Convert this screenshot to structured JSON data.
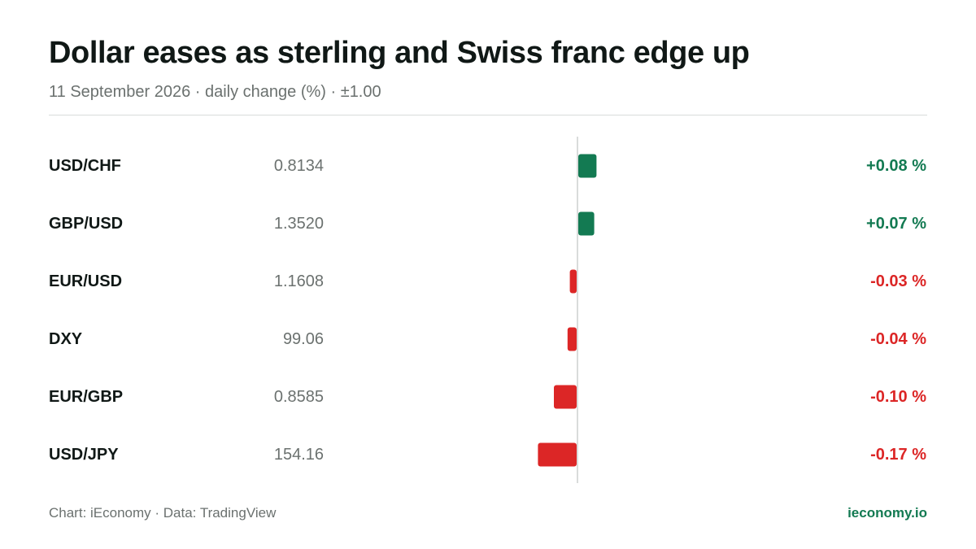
{
  "header": {
    "title": "Dollar eases as sterling and Swiss franc edge up",
    "subtitle": "11 September 2026 · daily change (%) · ±1.00"
  },
  "footer": {
    "source": "Chart: iEconomy · Data: TradingView",
    "brand": "ieconomy.io"
  },
  "colors": {
    "positive": "#137a52",
    "negative": "#dc2626",
    "axis": "#d9dcdb"
  },
  "chart_data": {
    "type": "bar",
    "orientation": "horizontal",
    "unit": "%",
    "xlim": [
      -1.0,
      1.0
    ],
    "grid": false,
    "categories": [
      "USD/CHF",
      "GBP/USD",
      "EUR/USD",
      "DXY",
      "EUR/GBP",
      "USD/JPY"
    ],
    "prices": [
      "0.8134",
      "1.3520",
      "1.1608",
      "99.06",
      "0.8585",
      "154.16"
    ],
    "values": [
      0.08,
      0.07,
      -0.03,
      -0.04,
      -0.1,
      -0.17
    ],
    "value_labels": [
      "+0.08 %",
      "+0.07 %",
      "-0.03 %",
      "-0.04 %",
      "-0.10 %",
      "-0.17 %"
    ]
  }
}
